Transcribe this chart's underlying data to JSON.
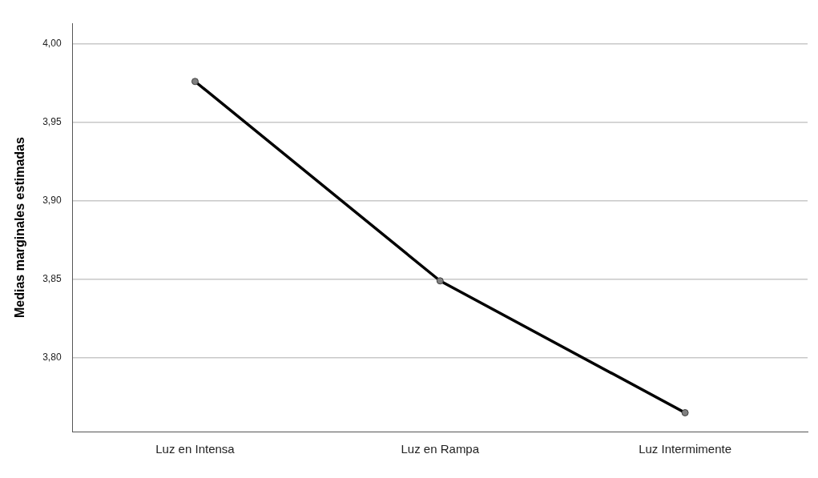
{
  "chart_data": {
    "type": "line",
    "ylabel": "Medias marginales estimadas",
    "categories": [
      "Luz en Intensa",
      "Luz en Rampa",
      "Luz Intermimente"
    ],
    "series": [
      {
        "color": "#000000",
        "values": [
          3.976,
          3.849,
          3.765
        ]
      }
    ],
    "ylim": [
      3.753,
      4.013
    ],
    "yticks": [
      {
        "value": 3.8,
        "label": "3,80"
      },
      {
        "value": 3.85,
        "label": "3,85"
      },
      {
        "value": 3.9,
        "label": "3,90"
      },
      {
        "value": 3.95,
        "label": "3,95"
      },
      {
        "value": 4,
        "label": "4,00"
      }
    ],
    "grid": "y",
    "marker": "circle",
    "line_style": "solid",
    "legend": false
  }
}
